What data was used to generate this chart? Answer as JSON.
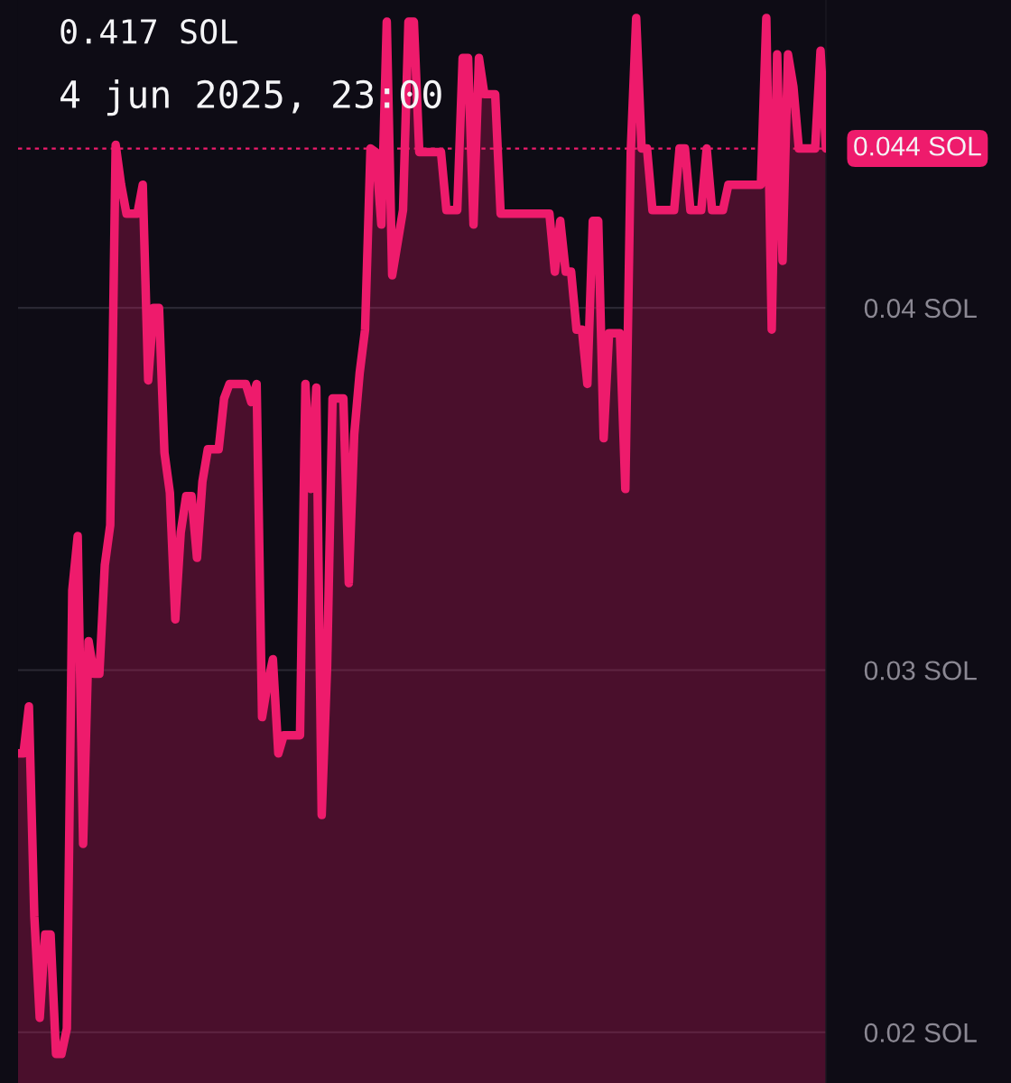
{
  "chart_data": {
    "type": "area",
    "annotations": [
      "0.417 SOL",
      "4 jun 2025, 23:00"
    ],
    "categories": [
      null,
      null,
      null,
      null,
      null,
      null,
      null,
      null,
      null,
      null,
      null,
      null,
      null,
      null,
      null,
      null,
      null,
      null,
      null,
      null,
      null,
      null,
      null,
      null,
      null,
      null,
      null,
      null,
      null,
      null,
      null,
      null,
      null,
      null,
      null,
      null,
      null,
      null,
      null,
      null,
      null,
      null,
      null,
      null,
      null,
      null,
      null,
      null,
      null,
      null,
      null,
      null,
      null,
      null,
      null,
      null,
      null,
      null,
      null,
      null,
      null,
      null,
      null,
      null,
      null,
      null,
      null,
      null,
      null,
      null,
      null,
      null,
      null,
      null,
      null,
      null,
      null,
      null,
      null,
      null,
      null,
      null,
      null,
      null,
      null,
      null,
      null,
      null,
      null,
      null,
      null,
      null,
      null,
      null,
      null,
      null,
      null,
      null,
      null,
      null,
      null,
      null,
      null,
      null,
      null,
      null,
      null,
      null,
      null,
      null,
      null,
      null,
      null,
      null,
      null,
      null,
      null,
      null,
      null,
      null,
      null,
      null,
      null,
      null,
      null,
      null,
      null,
      null,
      null,
      null,
      null,
      null,
      null,
      null,
      null,
      null,
      null,
      null,
      null,
      null,
      null,
      null,
      null,
      null,
      null,
      null,
      null,
      null,
      null,
      null
    ],
    "series": [
      {
        "color": "#ee1b6c",
        "values": [
          0.0277,
          0.0277,
          0.029,
          0.0232,
          0.0204,
          0.0227,
          0.0227,
          0.0194,
          0.0194,
          0.0201,
          0.0322,
          0.0337,
          0.0252,
          0.0308,
          0.0299,
          0.0299,
          0.0329,
          0.034,
          0.0445,
          0.0434,
          0.0426,
          0.0426,
          0.0426,
          0.0434,
          0.038,
          0.04,
          0.04,
          0.036,
          0.0349,
          0.0314,
          0.0338,
          0.0348,
          0.0348,
          0.0331,
          0.0352,
          0.0361,
          0.0361,
          0.0361,
          0.0375,
          0.0379,
          0.0379,
          0.0379,
          0.0379,
          0.0374,
          0.0379,
          0.0287,
          0.0296,
          0.0303,
          0.0277,
          0.0282,
          0.0282,
          0.0282,
          0.0282,
          0.0379,
          0.035,
          0.0378,
          0.026,
          0.0301,
          0.0375,
          0.0375,
          0.0375,
          0.0324,
          0.0365,
          0.0382,
          0.0394,
          0.0444,
          0.0443,
          0.0423,
          0.0479,
          0.0409,
          0.0418,
          0.0427,
          0.0479,
          0.0479,
          0.0443,
          0.0443,
          0.0443,
          0.0443,
          0.0443,
          0.0427,
          0.0427,
          0.0427,
          0.0469,
          0.0469,
          0.0423,
          0.0469,
          0.0459,
          0.0459,
          0.0459,
          0.0426,
          0.0426,
          0.0426,
          0.0426,
          0.0426,
          0.0426,
          0.0426,
          0.0426,
          0.0426,
          0.0426,
          0.041,
          0.0424,
          0.041,
          0.041,
          0.0394,
          0.0394,
          0.0379,
          0.0424,
          0.0424,
          0.0364,
          0.0393,
          0.0393,
          0.0393,
          0.035,
          0.0443,
          0.048,
          0.0444,
          0.0444,
          0.0427,
          0.0427,
          0.0427,
          0.0427,
          0.0427,
          0.0444,
          0.0444,
          0.0427,
          0.0427,
          0.0427,
          0.0444,
          0.0427,
          0.0427,
          0.0427,
          0.0434,
          0.0434,
          0.0434,
          0.0434,
          0.0434,
          0.0434,
          0.0434,
          0.048,
          0.0394,
          0.047,
          0.0413,
          0.047,
          0.0461,
          0.0444,
          0.0444,
          0.0444,
          0.0444,
          0.0471,
          0.0444
        ]
      }
    ],
    "ylim": [
      0.0186,
      0.0485
    ],
    "yticks": [
      {
        "value": 0.02,
        "label": "0.02 SOL"
      },
      {
        "value": 0.03,
        "label": "0.03 SOL"
      },
      {
        "value": 0.04,
        "label": "0.04 SOL"
      }
    ],
    "tick_labels": "y",
    "grid": "y",
    "ref_lines": [
      {
        "axis": "y",
        "value": 0.0444,
        "label": "0.044 SOL",
        "color": "#ee1b6c",
        "line_style": "dashed"
      }
    ]
  }
}
